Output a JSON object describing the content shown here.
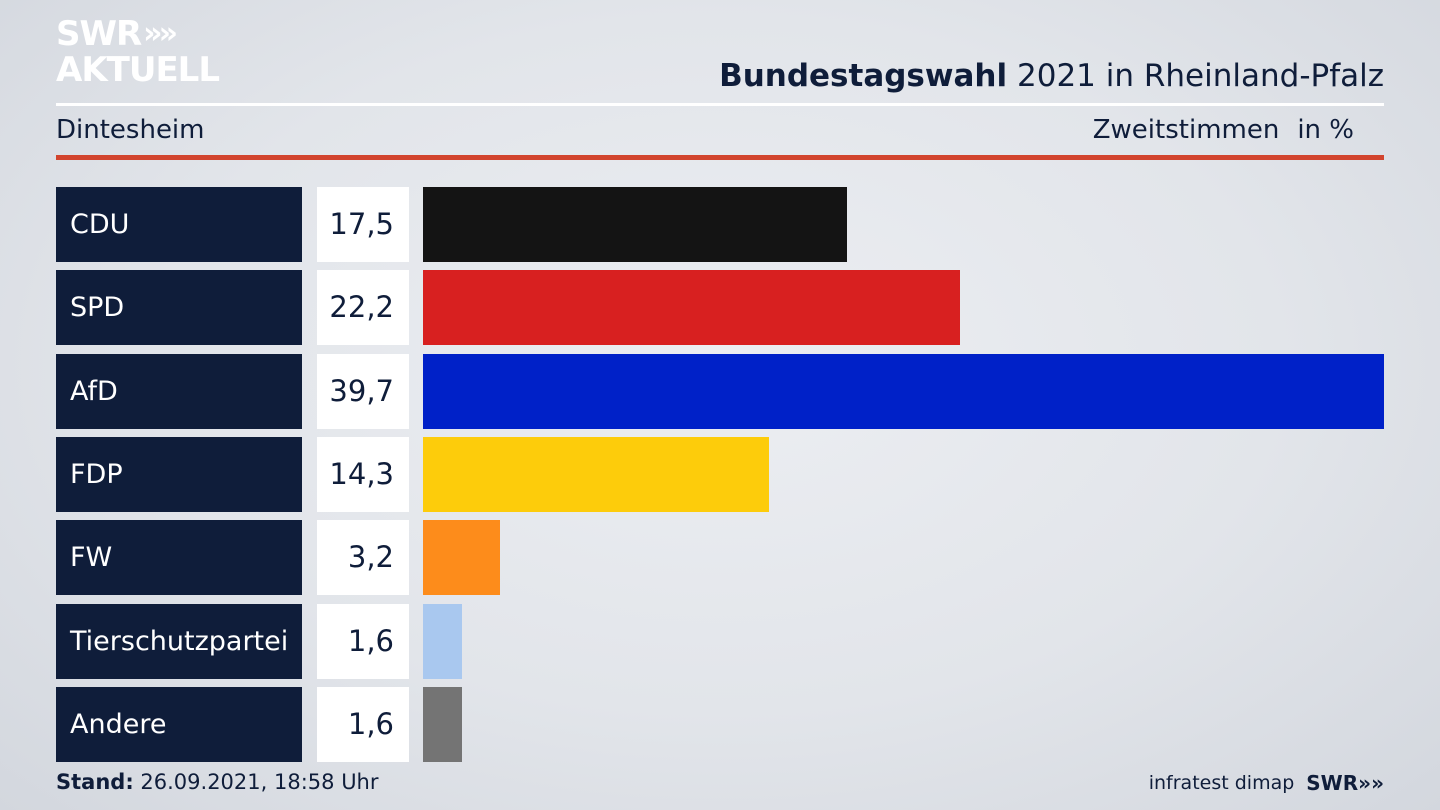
{
  "brand": {
    "line1": "SWR",
    "line2": "AKTUELL",
    "chevrons": "»"
  },
  "header": {
    "title_bold": "Bundestagswahl",
    "title_rest": "2021 in Rheinland-Pfalz"
  },
  "subheader": {
    "place": "Dintesheim",
    "measure": "Zweitstimmen",
    "unit": "in %"
  },
  "colors": {
    "background": "#e5e7eb",
    "navy": "#0f1d3a",
    "accent_rule": "#d2442e"
  },
  "chart_data": {
    "type": "bar",
    "orientation": "horizontal",
    "categories": [
      "CDU",
      "SPD",
      "AfD",
      "FDP",
      "FW",
      "Tierschutzpartei",
      "Andere"
    ],
    "values": [
      17.5,
      22.2,
      39.7,
      14.3,
      3.2,
      1.6,
      1.6
    ],
    "labels": [
      "17,5",
      "22,2",
      "39,7",
      "14,3",
      "3,2",
      "1,6",
      "1,6"
    ],
    "colors": [
      "#141414",
      "#d82020",
      "#0021c8",
      "#fdcc0b",
      "#fd8c1b",
      "#a9c8ef",
      "#747474"
    ],
    "xlim": [
      0,
      39.7
    ]
  },
  "footer": {
    "stand_label": "Stand:",
    "stand_value": "26.09.2021, 18:58 Uhr",
    "source": "infratest dimap",
    "brand": "SWR"
  }
}
